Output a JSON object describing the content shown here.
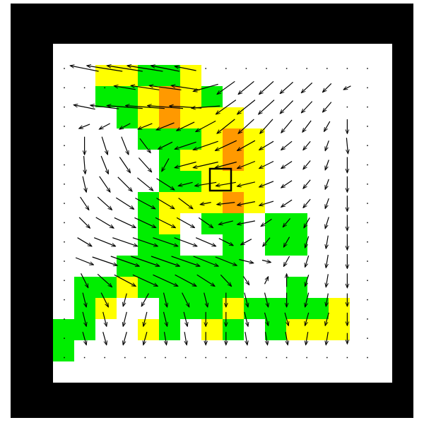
{
  "grid": {
    "origin": "top-left",
    "palette": [
      "#ffffff",
      "#00ee00",
      "#ffff00",
      "#ff9900"
    ],
    "highlight": [
      3,
      7
    ],
    "cells": [
      [
        0,
        0,
        0,
        0,
        0,
        0,
        0,
        0,
        0,
        0,
        0,
        0,
        0,
        0,
        0,
        0
      ],
      [
        0,
        0,
        2,
        2,
        1,
        1,
        2,
        0,
        0,
        0,
        0,
        0,
        0,
        0,
        0,
        0
      ],
      [
        0,
        0,
        1,
        1,
        2,
        3,
        2,
        1,
        0,
        0,
        0,
        0,
        0,
        0,
        0,
        0
      ],
      [
        0,
        0,
        0,
        1,
        2,
        3,
        2,
        2,
        2,
        0,
        0,
        0,
        0,
        0,
        0,
        0
      ],
      [
        0,
        0,
        0,
        0,
        1,
        1,
        1,
        2,
        3,
        2,
        0,
        0,
        0,
        0,
        0,
        0
      ],
      [
        0,
        0,
        0,
        0,
        0,
        1,
        2,
        2,
        3,
        2,
        0,
        0,
        0,
        0,
        0,
        0
      ],
      [
        0,
        0,
        0,
        0,
        0,
        1,
        1,
        2,
        2,
        2,
        0,
        0,
        0,
        0,
        0,
        0
      ],
      [
        0,
        0,
        0,
        0,
        1,
        2,
        2,
        2,
        3,
        2,
        0,
        0,
        0,
        0,
        0,
        0
      ],
      [
        0,
        0,
        0,
        0,
        1,
        2,
        0,
        1,
        1,
        0,
        1,
        1,
        0,
        0,
        0,
        0
      ],
      [
        0,
        0,
        0,
        0,
        1,
        1,
        0,
        0,
        1,
        0,
        1,
        1,
        0,
        0,
        0,
        0
      ],
      [
        0,
        0,
        0,
        1,
        1,
        1,
        1,
        1,
        1,
        0,
        0,
        0,
        0,
        0,
        0,
        0
      ],
      [
        0,
        1,
        1,
        2,
        1,
        1,
        1,
        1,
        1,
        0,
        0,
        1,
        0,
        0,
        0,
        0
      ],
      [
        0,
        1,
        2,
        0,
        0,
        1,
        1,
        1,
        2,
        1,
        1,
        1,
        1,
        2,
        0,
        0
      ],
      [
        1,
        1,
        0,
        0,
        2,
        1,
        0,
        2,
        1,
        0,
        1,
        2,
        2,
        2,
        0,
        0
      ],
      [
        1,
        0,
        0,
        0,
        0,
        0,
        0,
        0,
        0,
        0,
        0,
        0,
        0,
        0,
        0,
        0
      ],
      [
        0,
        0,
        0,
        0,
        0,
        0,
        0,
        0,
        0,
        0,
        0,
        0,
        0,
        0,
        0,
        0
      ]
    ]
  },
  "field": {
    "dx": [
      [
        0,
        -40,
        -50,
        -50,
        -50,
        -40,
        -30,
        0,
        0,
        0,
        0,
        0,
        0,
        0,
        0,
        0
      ],
      [
        0,
        0,
        0,
        -30,
        -40,
        -45,
        -40,
        -35,
        -25,
        -22,
        -20,
        -18,
        -15,
        -12,
        -10,
        0
      ],
      [
        0,
        -30,
        -40,
        -50,
        -55,
        -50,
        -45,
        -40,
        -28,
        -25,
        -22,
        -18,
        -15,
        -12,
        0,
        0
      ],
      [
        0,
        -15,
        -15,
        -15,
        -20,
        -25,
        -25,
        -28,
        -25,
        -22,
        -18,
        -15,
        -12,
        -8,
        0,
        0
      ],
      [
        0,
        0,
        8,
        10,
        15,
        -20,
        -30,
        -35,
        -30,
        -25,
        -20,
        -15,
        -10,
        -5,
        2,
        0
      ],
      [
        0,
        2,
        10,
        15,
        18,
        -10,
        -30,
        -35,
        -30,
        -25,
        -20,
        -15,
        -10,
        -5,
        0,
        0
      ],
      [
        0,
        5,
        15,
        20,
        22,
        25,
        -20,
        -30,
        -28,
        -25,
        -20,
        -15,
        -10,
        -5,
        0,
        0
      ],
      [
        0,
        12,
        20,
        25,
        28,
        25,
        20,
        -15,
        -25,
        -25,
        -20,
        -15,
        -10,
        -5,
        0,
        0
      ],
      [
        0,
        15,
        25,
        30,
        30,
        28,
        25,
        20,
        -20,
        -25,
        -15,
        -10,
        -8,
        -5,
        0,
        0
      ],
      [
        0,
        20,
        30,
        35,
        35,
        35,
        32,
        28,
        20,
        -15,
        -10,
        -8,
        -5,
        -3,
        0,
        0
      ],
      [
        0,
        25,
        35,
        40,
        40,
        40,
        40,
        35,
        30,
        20,
        12,
        -8,
        -5,
        -3,
        0,
        0
      ],
      [
        0,
        10,
        20,
        30,
        35,
        35,
        30,
        25,
        15,
        8,
        5,
        0,
        -5,
        -3,
        0,
        0
      ],
      [
        0,
        5,
        10,
        -5,
        -10,
        5,
        10,
        5,
        0,
        5,
        5,
        0,
        -5,
        -3,
        0,
        0
      ],
      [
        0,
        5,
        5,
        -5,
        -5,
        5,
        5,
        0,
        0,
        5,
        5,
        5,
        -5,
        -5,
        0,
        0
      ],
      [
        0,
        5,
        5,
        -5,
        -5,
        3,
        3,
        0,
        0,
        3,
        3,
        3,
        -3,
        -3,
        0,
        0
      ],
      [
        0,
        0,
        0,
        0,
        0,
        0,
        0,
        0,
        0,
        0,
        0,
        0,
        0,
        0,
        0,
        0
      ]
    ],
    "dy": [
      [
        0,
        -8,
        -8,
        -8,
        -8,
        -8,
        -6,
        0,
        0,
        0,
        0,
        0,
        0,
        0,
        0,
        0
      ],
      [
        0,
        0,
        0,
        -5,
        -6,
        -6,
        -6,
        10,
        18,
        18,
        18,
        16,
        14,
        12,
        5,
        0
      ],
      [
        0,
        -6,
        -5,
        -4,
        -4,
        -4,
        -3,
        3,
        20,
        20,
        20,
        18,
        16,
        14,
        0,
        0
      ],
      [
        0,
        6,
        8,
        8,
        8,
        10,
        12,
        15,
        20,
        20,
        20,
        18,
        16,
        14,
        20,
        0
      ],
      [
        0,
        25,
        25,
        25,
        20,
        10,
        10,
        12,
        14,
        14,
        12,
        12,
        12,
        14,
        22,
        0
      ],
      [
        0,
        25,
        25,
        22,
        20,
        18,
        8,
        8,
        8,
        10,
        10,
        10,
        12,
        14,
        22,
        0
      ],
      [
        0,
        22,
        22,
        20,
        18,
        16,
        5,
        5,
        5,
        6,
        8,
        10,
        12,
        14,
        22,
        0
      ],
      [
        0,
        18,
        18,
        16,
        15,
        15,
        15,
        3,
        3,
        5,
        6,
        10,
        12,
        14,
        22,
        0
      ],
      [
        0,
        15,
        15,
        14,
        14,
        14,
        14,
        14,
        5,
        5,
        10,
        12,
        14,
        16,
        22,
        0
      ],
      [
        0,
        12,
        12,
        12,
        12,
        12,
        12,
        12,
        10,
        8,
        12,
        14,
        16,
        18,
        22,
        0
      ],
      [
        0,
        10,
        12,
        14,
        14,
        14,
        14,
        14,
        12,
        5,
        3,
        14,
        16,
        18,
        20,
        0
      ],
      [
        0,
        20,
        18,
        16,
        16,
        16,
        16,
        16,
        16,
        12,
        -10,
        -18,
        16,
        18,
        20,
        0
      ],
      [
        0,
        20,
        20,
        18,
        18,
        20,
        20,
        20,
        20,
        20,
        20,
        20,
        20,
        18,
        18,
        0
      ],
      [
        0,
        20,
        20,
        20,
        20,
        20,
        20,
        20,
        20,
        20,
        18,
        18,
        18,
        18,
        18,
        0
      ],
      [
        0,
        18,
        18,
        18,
        18,
        18,
        18,
        18,
        18,
        18,
        18,
        18,
        18,
        18,
        15,
        0
      ],
      [
        0,
        0,
        0,
        0,
        0,
        0,
        0,
        0,
        0,
        0,
        0,
        0,
        0,
        0,
        0,
        0
      ]
    ]
  }
}
